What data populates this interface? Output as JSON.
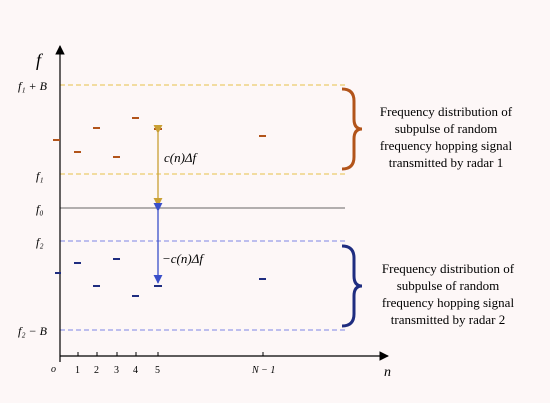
{
  "axes": {
    "y_label": "f",
    "x_label": "n",
    "origin_label": "o"
  },
  "frequency_levels": [
    {
      "key": "f1_plus_B",
      "label": "f₁ + B"
    },
    {
      "key": "f1",
      "label": "f₁"
    },
    {
      "key": "f0",
      "label": "f₀"
    },
    {
      "key": "f2",
      "label": "f₂"
    },
    {
      "key": "f2_minus_B",
      "label": "f₂ − B"
    }
  ],
  "x_ticks": [
    "1",
    "2",
    "3",
    "4",
    "5",
    "N − 1"
  ],
  "annotations": {
    "upper_offset": "c(n)Δf",
    "lower_offset": "−c(n)Δf"
  },
  "radar1": {
    "color": "#b2541a",
    "lines": [
      "Frequency distribution of",
      "subpulse of random",
      "frequency hopping signal",
      "transmitted by radar 1"
    ]
  },
  "radar2": {
    "color": "#1f2d80",
    "lines": [
      "Frequency distribution of",
      "subpulse of random",
      "frequency hopping signal",
      "transmitted by radar 2"
    ]
  },
  "colors": {
    "dashed_guides": "#e8c04a",
    "blue_guides": "#7d86e6",
    "arrow_up": "#c9a035",
    "arrow_down": "#3a4fc9"
  }
}
